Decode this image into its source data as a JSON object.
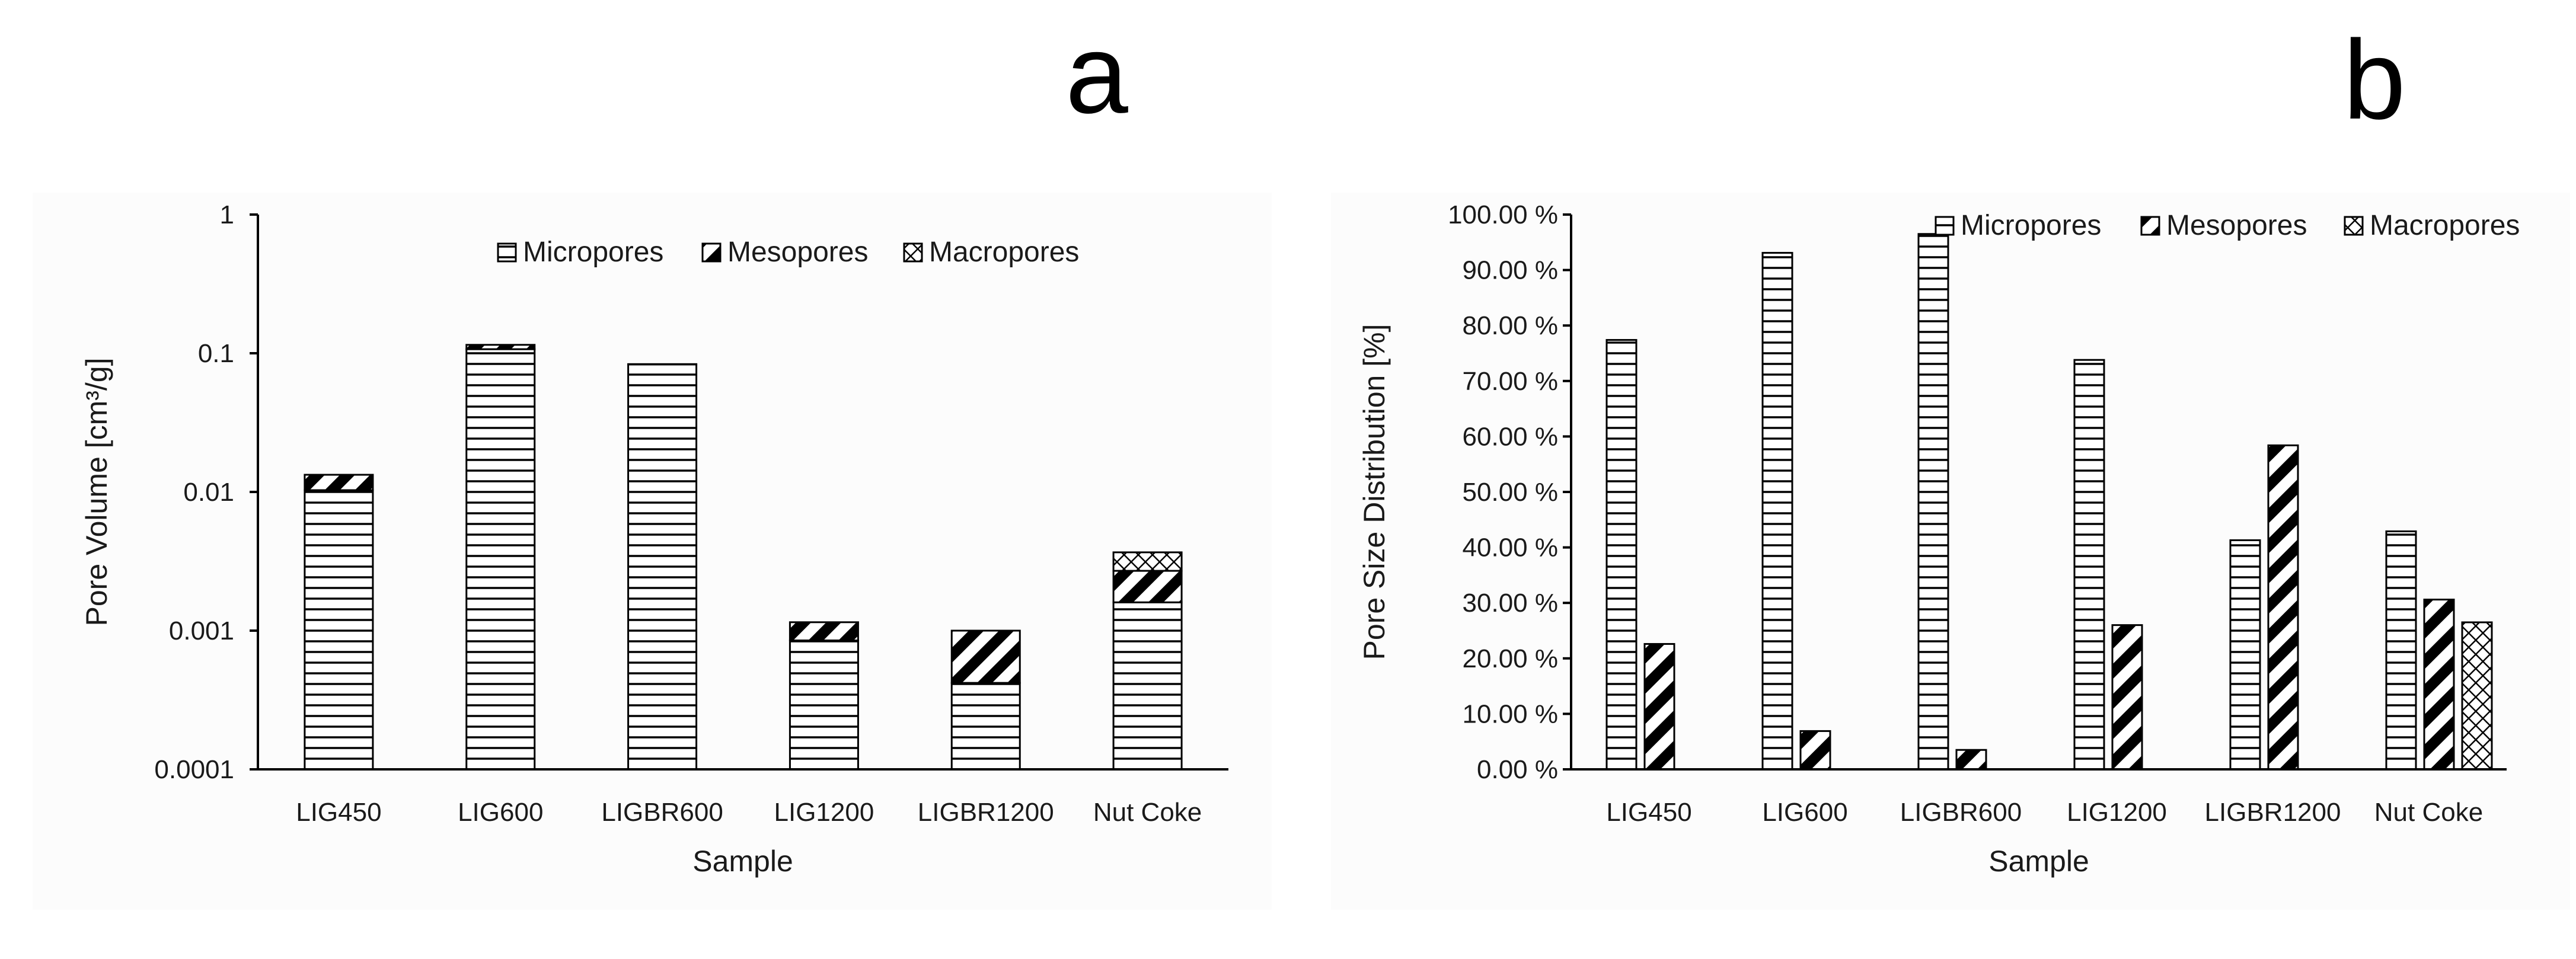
{
  "chart_data": [
    {
      "panel_label": "a",
      "type": "bar",
      "stacked": true,
      "y_scale": "log",
      "xlabel": "Sample",
      "ylabel": "Pore Volume [cm³/g]",
      "ylim": [
        0.0001,
        1
      ],
      "yticks": [
        "0.0001",
        "0.001",
        "0.01",
        "0.1",
        "1"
      ],
      "categories": [
        "LIG450",
        "LIG600",
        "LIGBR600",
        "LIG1200",
        "LIGBR1200",
        "Nut Coke"
      ],
      "legend_position": "top-center",
      "series": [
        {
          "name": "Micropores",
          "pattern": "horizontal-lines",
          "values": [
            0.0103,
            0.107,
            0.083,
            0.00085,
            0.00042,
            0.0016
          ]
        },
        {
          "name": "Mesopores",
          "pattern": "diagonal-lines",
          "values": [
            0.003,
            0.008,
            0.0005,
            0.0003,
            0.00058,
            0.0011
          ]
        },
        {
          "name": "Macropores",
          "pattern": "cross-hatch",
          "values": [
            0,
            0,
            0,
            0,
            0,
            0.00097
          ]
        }
      ]
    },
    {
      "panel_label": "b",
      "type": "bar",
      "stacked": false,
      "xlabel": "Sample",
      "ylabel": "Pore Size Distribution [%]",
      "ylim": [
        0,
        100
      ],
      "yticks": [
        "0.00 %",
        "10.00 %",
        "20.00 %",
        "30.00 %",
        "40.00 %",
        "50.00 %",
        "60.00 %",
        "70.00 %",
        "80.00 %",
        "90.00 %",
        "100.00 %"
      ],
      "categories": [
        "LIG450",
        "LIG600",
        "LIGBR600",
        "LIG1200",
        "LIGBR1200",
        "Nut Coke"
      ],
      "legend_position": "top-right",
      "series": [
        {
          "name": "Micropores",
          "pattern": "horizontal-lines",
          "values": [
            77.4,
            93.1,
            96.5,
            73.8,
            41.3,
            42.9
          ]
        },
        {
          "name": "Mesopores",
          "pattern": "diagonal-lines",
          "values": [
            22.6,
            6.9,
            3.5,
            26.0,
            58.4,
            30.6
          ]
        },
        {
          "name": "Macropores",
          "pattern": "cross-hatch",
          "values": [
            0,
            0,
            0,
            0,
            0,
            26.5
          ]
        }
      ]
    }
  ]
}
